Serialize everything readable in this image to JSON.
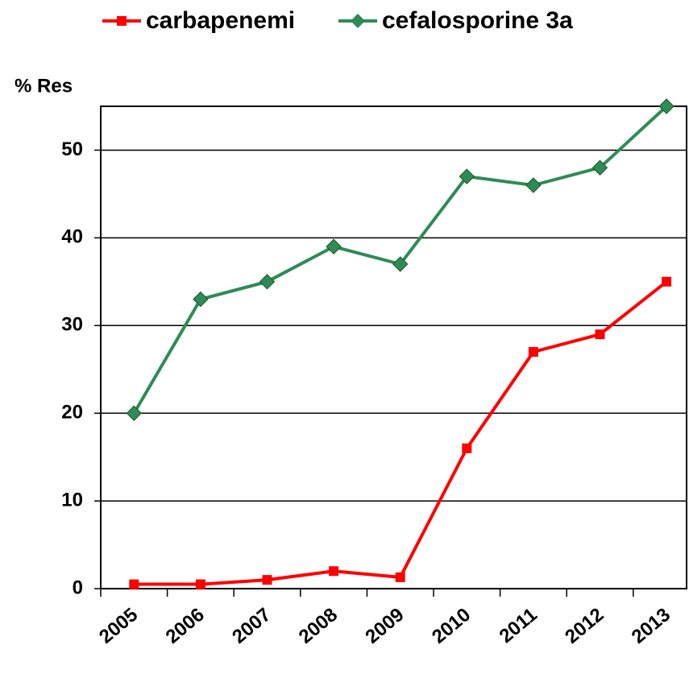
{
  "chart_data": {
    "type": "line",
    "y_label": "% Res",
    "categories": [
      "2005",
      "2006",
      "2007",
      "2008",
      "2009",
      "2010",
      "2011",
      "2012",
      "2013"
    ],
    "series": [
      {
        "name": "carbapenemi",
        "color": "#ff0000",
        "marker": "square",
        "values": [
          0.5,
          0.5,
          1,
          2,
          1.3,
          16,
          27,
          29,
          35
        ]
      },
      {
        "name": "cefalosporine 3a",
        "color": "#2e8b57",
        "marker": "diamond",
        "values": [
          20,
          33,
          35,
          39,
          37,
          47,
          46,
          48,
          55
        ]
      }
    ],
    "ylim": [
      0,
      55
    ],
    "yticks": [
      0,
      10,
      20,
      30,
      40,
      50
    ],
    "grid": true,
    "legend": "top"
  }
}
